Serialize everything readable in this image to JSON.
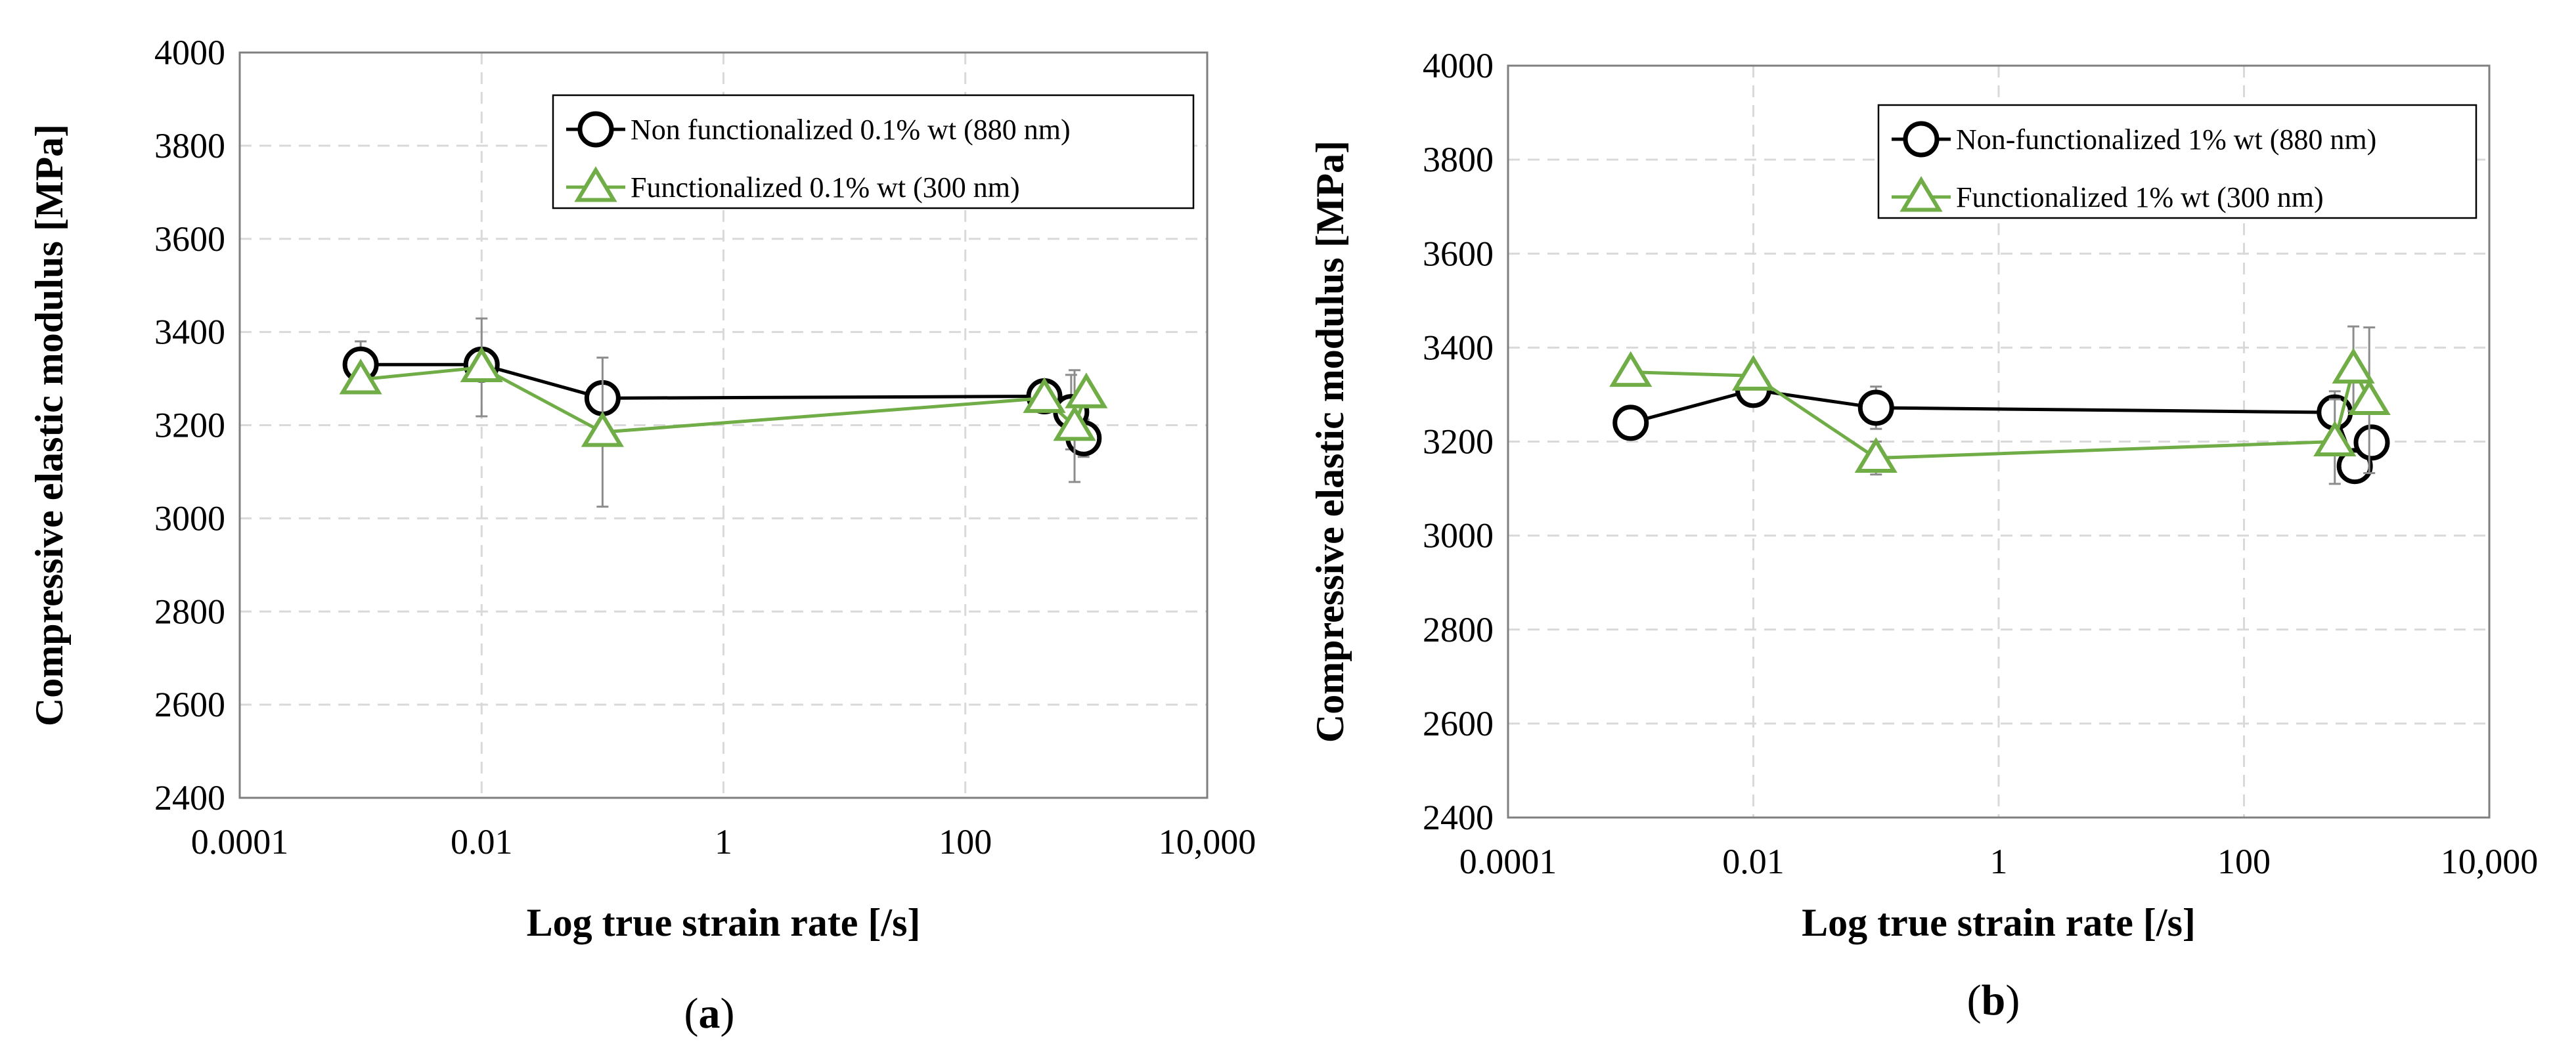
{
  "chart_data": [
    {
      "id": "a",
      "type": "line",
      "caption_letter": "a",
      "xlabel": "Log true strain rate [/s]",
      "ylabel": "Compressive elastic modulus [MPa]",
      "xscale": "log",
      "xlim": [
        0.0001,
        10000
      ],
      "ylim": [
        2400,
        4000
      ],
      "xticks": [
        0.0001,
        0.01,
        1,
        100,
        10000
      ],
      "xtick_labels": [
        "0.0001",
        "0.01",
        "1",
        "100",
        "10,000"
      ],
      "yticks": [
        2400,
        2600,
        2800,
        3000,
        3200,
        3400,
        3600,
        3800,
        4000
      ],
      "ytick_labels": [
        "2400",
        "2600",
        "2800",
        "3000",
        "3200",
        "3400",
        "3600",
        "3800",
        "4000"
      ],
      "grid": true,
      "legend_position": "top-right",
      "series": [
        {
          "name": "Non functionalized 0.1% wt (880 nm)",
          "color": "#000000",
          "marker": "circle",
          "x": [
            0.001,
            0.01,
            0.1,
            450,
            750,
            950
          ],
          "y": [
            3330,
            3330,
            3258,
            3262,
            3228,
            3172
          ],
          "err": [
            50,
            20,
            0,
            0,
            80,
            40
          ]
        },
        {
          "name": "Functionalized 0.1% wt (300 nm)",
          "color": "#70ad47",
          "marker": "triangle",
          "x": [
            0.001,
            0.01,
            0.1,
            450,
            800,
            1000
          ],
          "y": [
            3298,
            3324,
            3185,
            3258,
            3198,
            3268
          ],
          "err": [
            0,
            105,
            160,
            0,
            120,
            0
          ]
        }
      ]
    },
    {
      "id": "b",
      "type": "line",
      "caption_letter": "b",
      "xlabel": "Log true strain rate [/s]",
      "ylabel": "Compressive elastic modulus [MPa]",
      "xscale": "log",
      "xlim": [
        0.0001,
        10000
      ],
      "ylim": [
        2400,
        4000
      ],
      "xticks": [
        0.0001,
        0.01,
        1,
        100,
        10000
      ],
      "xtick_labels": [
        "0.0001",
        "0.01",
        "1",
        "100",
        "10,000"
      ],
      "yticks": [
        2400,
        2600,
        2800,
        3000,
        3200,
        3400,
        3600,
        3800,
        4000
      ],
      "ytick_labels": [
        "2400",
        "2600",
        "2800",
        "3000",
        "3200",
        "3400",
        "3600",
        "3800",
        "4000"
      ],
      "grid": true,
      "legend_position": "top-right",
      "series": [
        {
          "name": "Non-functionalized 1% wt (880 nm)",
          "color": "#000000",
          "marker": "circle",
          "x": [
            0.001,
            0.01,
            0.1,
            550,
            800,
            1100
          ],
          "y": [
            3240,
            3310,
            3272,
            3262,
            3148,
            3198
          ],
          "err": [
            0,
            0,
            45,
            45,
            0,
            0
          ]
        },
        {
          "name": "Functionalized 1% wt (300 nm)",
          "color": "#70ad47",
          "marker": "triangle",
          "x": [
            0.001,
            0.01,
            0.1,
            550,
            780,
            1050
          ],
          "y": [
            3348,
            3340,
            3165,
            3200,
            3355,
            3288
          ],
          "err": [
            0,
            0,
            35,
            90,
            90,
            155
          ]
        }
      ]
    }
  ]
}
